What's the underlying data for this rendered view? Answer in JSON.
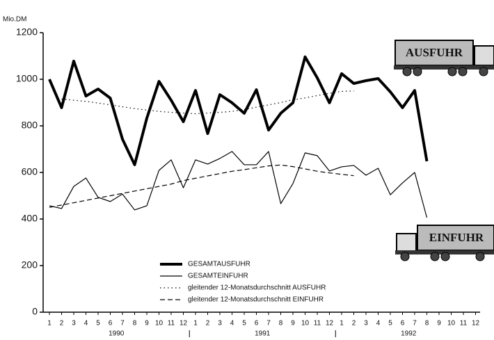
{
  "chart_data": {
    "type": "line",
    "y_axis_label": "Mio.DM",
    "categories": [
      "1",
      "2",
      "3",
      "4",
      "5",
      "6",
      "7",
      "8",
      "9",
      "10",
      "11",
      "12",
      "1",
      "2",
      "3",
      "4",
      "5",
      "6",
      "7",
      "8",
      "9",
      "10",
      "11",
      "12",
      "1",
      "2",
      "3",
      "4",
      "5",
      "6",
      "7",
      "8",
      "9",
      "10",
      "11",
      "12"
    ],
    "years": [
      "1990",
      "1991",
      "1992"
    ],
    "ylim": [
      0,
      1200
    ],
    "yticks": [
      0,
      200,
      400,
      600,
      800,
      1000,
      1200
    ],
    "truck_labels": [
      "AUSFUHR",
      "EINFUHR"
    ],
    "series": [
      {
        "name": "GESAMTAUSFUHR",
        "color": "#000000",
        "width": 4,
        "dash": "solid",
        "values": [
          1000,
          878,
          1078,
          928,
          958,
          919,
          743,
          633,
          833,
          991,
          910,
          818,
          952,
          767,
          934,
          899,
          854,
          955,
          782,
          854,
          899,
          1096,
          1006,
          899,
          1024,
          982,
          994,
          1003,
          946,
          878,
          952,
          648,
          null,
          null,
          null,
          null
        ]
      },
      {
        "name": "GESAMTEINFUHR",
        "color": "#000000",
        "width": 1.2,
        "dash": "solid",
        "values": [
          457,
          445,
          540,
          576,
          493,
          475,
          507,
          439,
          457,
          609,
          654,
          534,
          654,
          636,
          660,
          690,
          633,
          633,
          690,
          466,
          552,
          684,
          672,
          606,
          624,
          630,
          588,
          618,
          504,
          555,
          600,
          406,
          null,
          null,
          null,
          null
        ]
      },
      {
        "name": "gleitender 12-Monatsdurchschnitt AUSFUHR",
        "color": "#000000",
        "width": 1.2,
        "dash": "dotted",
        "values": [
          null,
          915,
          910,
          905,
          898,
          890,
          882,
          874,
          868,
          862,
          858,
          855,
          852,
          855,
          858,
          862,
          870,
          880,
          890,
          900,
          912,
          920,
          930,
          940,
          948,
          950,
          null,
          null,
          null,
          null,
          null,
          null,
          null,
          null,
          null,
          null
        ]
      },
      {
        "name": "gleitender 12-Monatsdurchschnitt EINFUHR",
        "color": "#000000",
        "width": 1.2,
        "dash": "dashed",
        "values": [
          450,
          460,
          470,
          480,
          490,
          500,
          510,
          520,
          530,
          540,
          550,
          565,
          575,
          585,
          595,
          605,
          612,
          620,
          628,
          632,
          625,
          615,
          605,
          598,
          592,
          586,
          null,
          null,
          null,
          null,
          null,
          null,
          null,
          null,
          null,
          null
        ]
      }
    ]
  }
}
